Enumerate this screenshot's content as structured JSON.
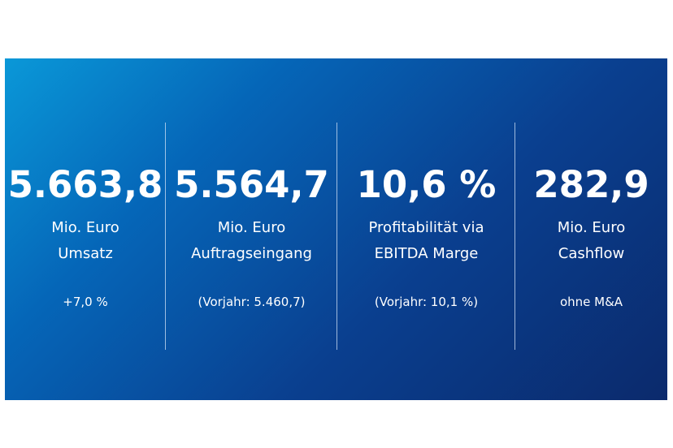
{
  "kpis": [
    {
      "value": "5.663,8",
      "label_line1": "Mio. Euro",
      "label_line2": "Umsatz",
      "note": "+7,0 %"
    },
    {
      "value": "5.564,7",
      "label_line1": "Mio. Euro",
      "label_line2": "Auftragseingang",
      "note": "(Vorjahr: 5.460,7)"
    },
    {
      "value": "10,6 %",
      "label_line1": "Profitabilität via",
      "label_line2": "EBITDA Marge",
      "note": "(Vorjahr: 10,1 %)"
    },
    {
      "value": "282,9",
      "label_line1": "Mio. Euro",
      "label_line2": "Cashflow",
      "note": "ohne M&A"
    }
  ],
  "colors": {
    "panel_gradient_start": "#0a98d8",
    "panel_gradient_end": "#0b2a6c",
    "text": "#ffffff"
  }
}
